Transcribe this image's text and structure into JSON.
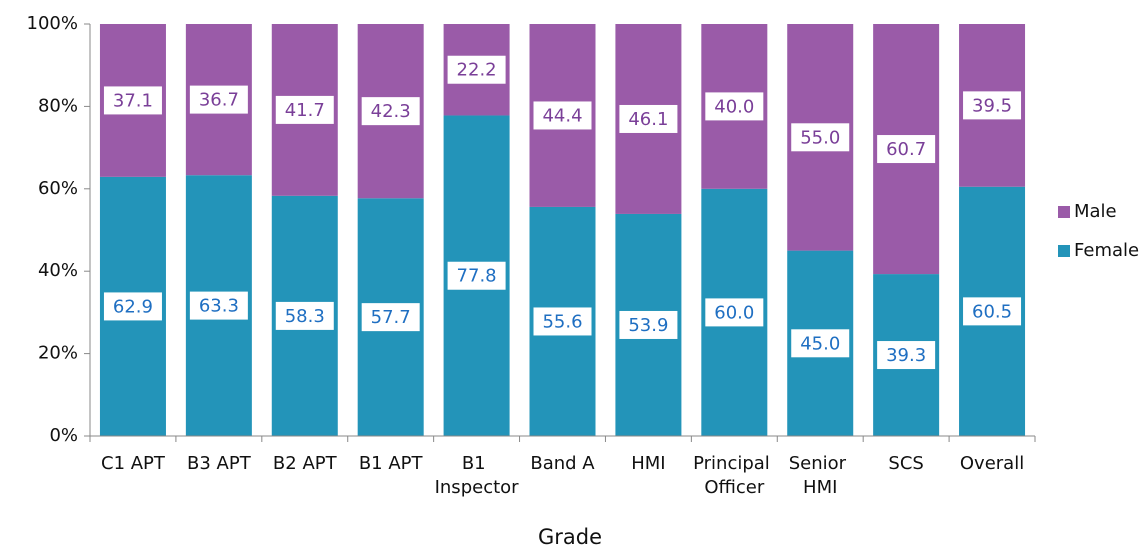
{
  "chart_data": {
    "type": "stacked_bar_100",
    "x_label": "Grade",
    "categories": [
      "C1 APT",
      "B3 APT",
      "B2 APT",
      "B1 APT",
      "B1 Inspector",
      "Band A",
      "HMI",
      "Principal Officer",
      "Senior HMI",
      "SCS",
      "Overall"
    ],
    "series": [
      {
        "name": "Female",
        "color": "#2394b9",
        "label_color": "#1f6fc2",
        "values": [
          62.9,
          63.3,
          58.3,
          57.7,
          77.8,
          55.6,
          53.9,
          60.0,
          45.0,
          39.3,
          60.5
        ],
        "value_labels": [
          "62.9",
          "63.3",
          "58.3",
          "57.7",
          "77.8",
          "55.6",
          "53.9",
          "60.0",
          "45.0",
          "39.3",
          "60.5"
        ]
      },
      {
        "name": "Male",
        "color": "#9a5ba8",
        "label_color": "#7a3f98",
        "values": [
          37.1,
          36.7,
          41.7,
          42.3,
          22.2,
          44.4,
          46.1,
          40.0,
          55.0,
          60.7,
          39.5
        ],
        "value_labels": [
          "37.1",
          "36.7",
          "41.7",
          "42.3",
          "22.2",
          "44.4",
          "46.1",
          "40.0",
          "55.0",
          "60.7",
          "39.5"
        ]
      }
    ],
    "ylim": [
      0,
      100
    ],
    "yticks": [
      {
        "value": 0,
        "label": "0%"
      },
      {
        "value": 20,
        "label": "20%"
      },
      {
        "value": 40,
        "label": "40%"
      },
      {
        "value": 60,
        "label": "60%"
      },
      {
        "value": 80,
        "label": "80%"
      },
      {
        "value": 100,
        "label": "100%"
      }
    ],
    "legend": "right"
  }
}
